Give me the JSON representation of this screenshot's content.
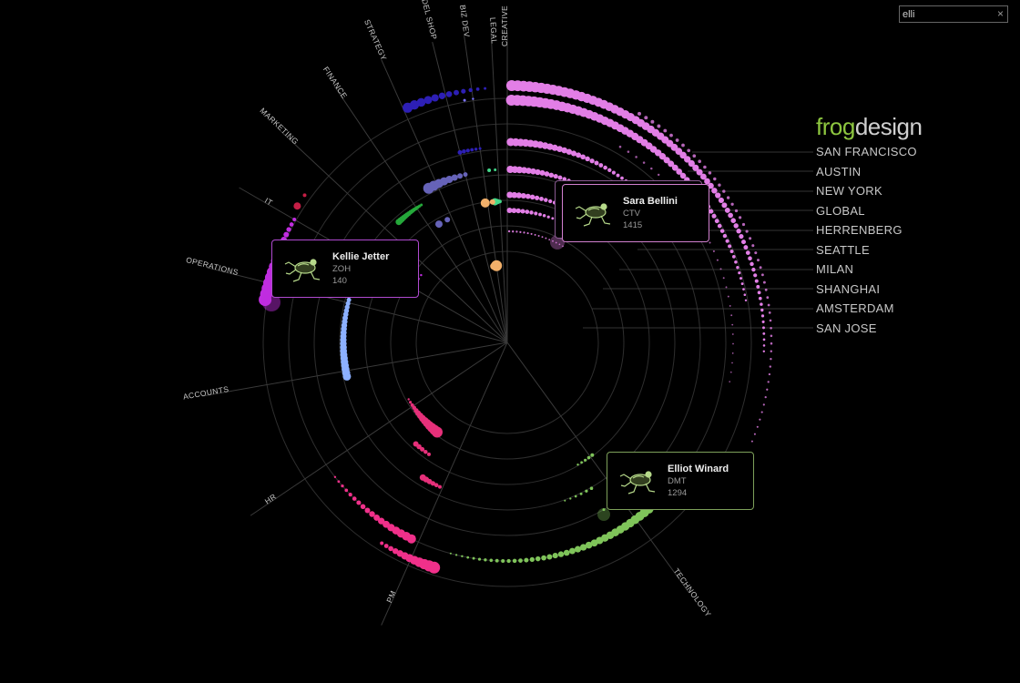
{
  "search": {
    "value": "elli"
  },
  "brand": {
    "part1": "frog",
    "part2": "design"
  },
  "offices": [
    {
      "name": "SAN FRANCISCO"
    },
    {
      "name": "AUSTIN"
    },
    {
      "name": "NEW YORK"
    },
    {
      "name": "GLOBAL"
    },
    {
      "name": "HERRENBERG"
    },
    {
      "name": "SEATTLE"
    },
    {
      "name": "MILAN"
    },
    {
      "name": "SHANGHAI"
    },
    {
      "name": "AMSTERDAM"
    },
    {
      "name": "SAN JOSE"
    }
  ],
  "departments": [
    {
      "label": "CREATIVE",
      "color": "#e27ee6"
    },
    {
      "label": "LEGAL",
      "color": "#f2b06a"
    },
    {
      "label": "BIZ DEV",
      "color": "#44d98a"
    },
    {
      "label": "MODEL SHOP",
      "color": "#7b74ff"
    },
    {
      "label": "STRATEGY",
      "color": "#2d1fb5"
    },
    {
      "label": "FINANCE",
      "color": "#6663b8"
    },
    {
      "label": "MARKETING",
      "color": "#25a83a"
    },
    {
      "label": "IT",
      "color": "#c41e45"
    },
    {
      "label": "OPERATIONS",
      "color": "#c02de0"
    },
    {
      "label": "ACCOUNTS",
      "color": "#8cb0ff"
    },
    {
      "label": "HR",
      "color": "#e6307a"
    },
    {
      "label": "PM",
      "color": "#f0308a"
    },
    {
      "label": "TECHNOLOGY",
      "color": "#7fc45a"
    }
  ],
  "cards": [
    {
      "name": "Sara Bellini",
      "code": "CTV",
      "number": "1415",
      "color": "#d280d0"
    },
    {
      "name": "Kellie Jetter",
      "code": "ZOH",
      "number": "140",
      "color": "#b04ad0"
    },
    {
      "name": "Elliot Winard",
      "code": "DMT",
      "number": "1294",
      "color": "#7da05a"
    }
  ],
  "icons": {
    "clear": "close-icon",
    "card": "frog-icon"
  }
}
